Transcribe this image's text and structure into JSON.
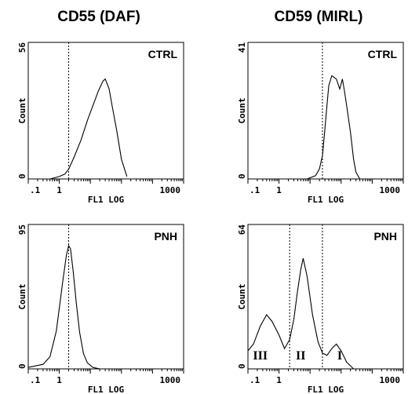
{
  "columns": [
    {
      "title": "CD55 (DAF)"
    },
    {
      "title": "CD59 (MIRL)"
    }
  ],
  "chart_data": [
    {
      "type": "line",
      "title": "CTRL",
      "xlabel": "FL1 LOG",
      "ylabel": "Count",
      "x_scale": "log",
      "xlim": [
        0.1,
        10000
      ],
      "ylim": [
        0,
        56
      ],
      "x_tick_labels": [
        ".1",
        "1",
        "1000"
      ],
      "y_tick_labels": [
        "0",
        "56"
      ],
      "gates": [
        2.0
      ],
      "region_labels": [],
      "x": [
        0.5,
        1.0,
        1.5,
        2.0,
        3.0,
        5.0,
        8.0,
        12.0,
        18.0,
        25.0,
        30.0,
        40.0,
        50.0,
        70.0,
        100.0,
        150.0
      ],
      "values": [
        0,
        1,
        2,
        4,
        9,
        16,
        24,
        30,
        36,
        40,
        41,
        37,
        30,
        20,
        8,
        1
      ]
    },
    {
      "type": "line",
      "title": "CTRL",
      "xlabel": "FL1 LOG",
      "ylabel": "Count",
      "x_scale": "log",
      "xlim": [
        0.1,
        10000
      ],
      "ylim": [
        0,
        41
      ],
      "x_tick_labels": [
        ".1",
        "1",
        "1000"
      ],
      "y_tick_labels": [
        "0",
        "41"
      ],
      "gates": [
        25.0
      ],
      "region_labels": [],
      "x": [
        8.0,
        15.0,
        20.0,
        25.0,
        30.0,
        35.0,
        40.0,
        50.0,
        70.0,
        90.0,
        110.0,
        130.0,
        150.0,
        200.0,
        250.0,
        300.0,
        400.0
      ],
      "values": [
        0,
        1,
        3,
        7,
        15,
        22,
        28,
        31,
        30,
        27,
        30,
        26,
        22,
        14,
        6,
        2,
        0
      ]
    },
    {
      "type": "line",
      "title": "PNH",
      "xlabel": "FL1 LOG",
      "ylabel": "Count",
      "x_scale": "log",
      "xlim": [
        0.1,
        10000
      ],
      "ylim": [
        0,
        95
      ],
      "x_tick_labels": [
        ".1",
        "1",
        "1000"
      ],
      "y_tick_labels": [
        "0",
        "95"
      ],
      "gates": [
        2.0
      ],
      "region_labels": [],
      "x": [
        0.1,
        0.3,
        0.5,
        0.8,
        1.0,
        1.3,
        1.7,
        2.0,
        2.3,
        2.8,
        3.5,
        4.5,
        6.0,
        8.0,
        12.0,
        20.0
      ],
      "values": [
        1,
        3,
        8,
        25,
        40,
        58,
        75,
        81,
        79,
        64,
        44,
        24,
        10,
        4,
        1,
        0
      ]
    },
    {
      "type": "line",
      "title": "PNH",
      "xlabel": "FL1 LOG",
      "ylabel": "Count",
      "x_scale": "log",
      "xlim": [
        0.1,
        10000
      ],
      "ylim": [
        0,
        64
      ],
      "x_tick_labels": [
        ".1",
        "1",
        "1000"
      ],
      "y_tick_labels": [
        "0",
        "64"
      ],
      "gates": [
        2.2,
        25.0
      ],
      "region_labels": [
        {
          "text": "III",
          "x": 0.25
        },
        {
          "text": "II",
          "x": 5.0
        },
        {
          "text": "I",
          "x": 90.0
        }
      ],
      "x": [
        0.1,
        0.15,
        0.25,
        0.4,
        0.6,
        1.0,
        1.5,
        2.2,
        3.0,
        4.0,
        5.0,
        6.0,
        8.0,
        12.0,
        18.0,
        25.0,
        35.0,
        50.0,
        70.0,
        100.0,
        150.0,
        250.0
      ],
      "values": [
        8,
        11,
        19,
        24,
        21,
        15,
        9,
        13,
        22,
        35,
        44,
        49,
        41,
        24,
        12,
        7,
        6,
        9,
        11,
        8,
        3,
        0
      ]
    }
  ]
}
